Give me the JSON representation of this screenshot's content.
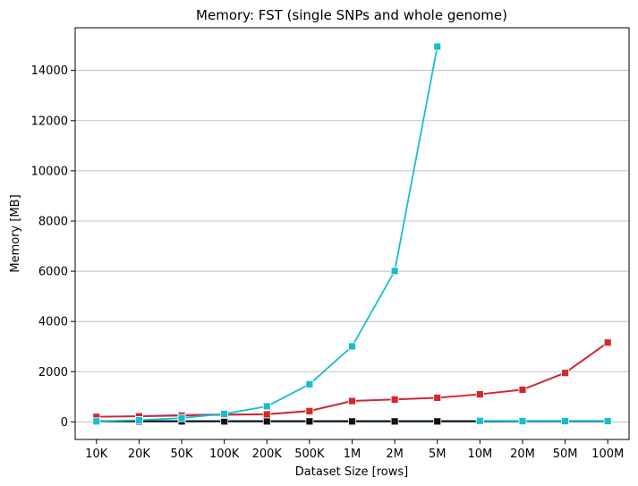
{
  "chart_data": {
    "type": "line",
    "title": "Memory:  FST (single SNPs and whole genome)",
    "xlabel": "Dataset Size  [rows]",
    "ylabel": "Memory  [MB]",
    "categories": [
      "10K",
      "20K",
      "50K",
      "100K",
      "200K",
      "500K",
      "1M",
      "2M",
      "5M",
      "10M",
      "20M",
      "50M",
      "100M"
    ],
    "ylim": [
      -700,
      15700
    ],
    "yticks": [
      0,
      2000,
      4000,
      6000,
      8000,
      10000,
      12000,
      14000
    ],
    "grid": "horizontal",
    "series": [
      {
        "color": "#2ca02c",
        "marker": "square",
        "values": [
          30,
          30,
          30,
          30,
          30,
          30,
          30,
          30,
          30,
          30,
          30,
          30,
          30
        ]
      },
      {
        "color": "#1f77b4",
        "marker": "square",
        "values": [
          40,
          40,
          40,
          40,
          40,
          40,
          40,
          40,
          40,
          40,
          40,
          40,
          40
        ]
      },
      {
        "color": "#111111",
        "marker": "square",
        "values": [
          20,
          20,
          20,
          20,
          20,
          20,
          20,
          20,
          20,
          20,
          20,
          20,
          20
        ]
      },
      {
        "color": "#9467bd",
        "marker": "square",
        "values": [
          210,
          230,
          280,
          300,
          310,
          440,
          840,
          900,
          960,
          1100,
          1290,
          1960,
          3170
        ]
      },
      {
        "color": "#d62728",
        "marker": "square",
        "values": [
          200,
          220,
          250,
          280,
          300,
          430,
          830,
          890,
          960,
          1100,
          1280,
          1950,
          3160
        ]
      },
      {
        "color": "#17becf",
        "marker": "square",
        "values": [
          20,
          70,
          150,
          320,
          620,
          1500,
          3010,
          6010,
          14950,
          40,
          30,
          30,
          30
        ],
        "line_break_before_index": 9
      }
    ]
  }
}
